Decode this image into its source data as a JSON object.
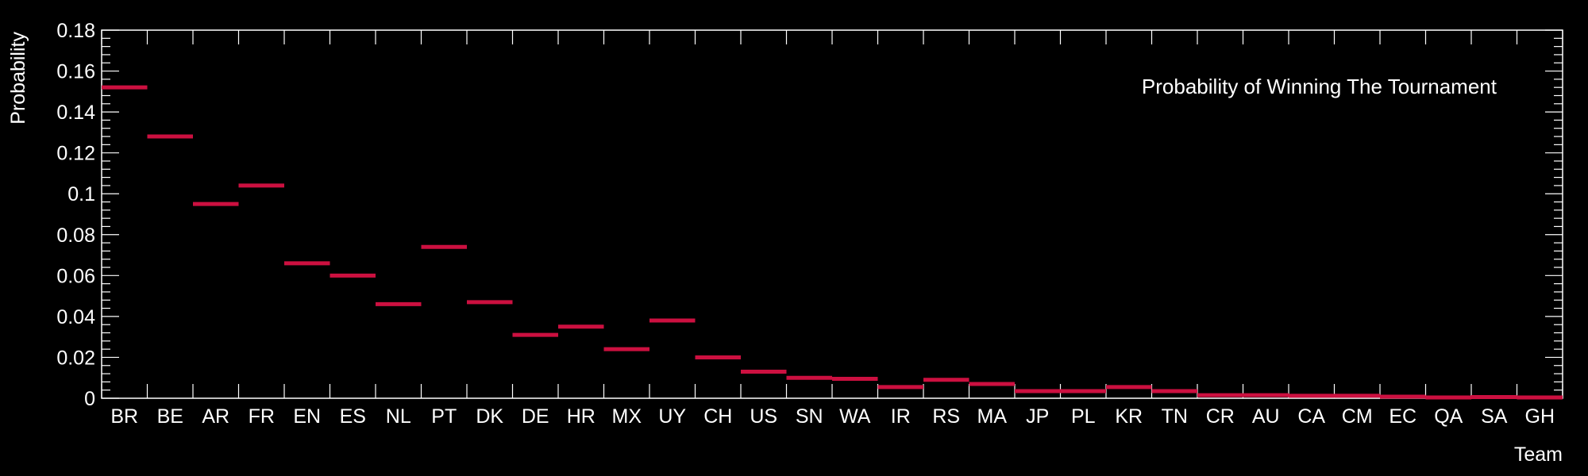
{
  "colors": {
    "background": "#000000",
    "axis": "#ffffff",
    "bar": "#cc1040"
  },
  "chart_data": {
    "type": "bar",
    "style": "horizontal-step-markers",
    "title": "Probability of Winning The Tournament",
    "legend_position": "top-right",
    "xlabel": "Team",
    "ylabel": "Probability",
    "ylim": [
      0,
      0.18
    ],
    "yticks": [
      {
        "value": 0,
        "label": "0"
      },
      {
        "value": 0.02,
        "label": "0.02"
      },
      {
        "value": 0.04,
        "label": "0.04"
      },
      {
        "value": 0.06,
        "label": "0.06"
      },
      {
        "value": 0.08,
        "label": "0.08"
      },
      {
        "value": 0.1,
        "label": "0.1"
      },
      {
        "value": 0.12,
        "label": "0.12"
      },
      {
        "value": 0.14,
        "label": "0.14"
      },
      {
        "value": 0.16,
        "label": "0.16"
      },
      {
        "value": 0.18,
        "label": "0.18"
      }
    ],
    "grid": false,
    "categories": [
      "BR",
      "BE",
      "AR",
      "FR",
      "EN",
      "ES",
      "NL",
      "PT",
      "DK",
      "DE",
      "HR",
      "MX",
      "UY",
      "CH",
      "US",
      "SN",
      "WA",
      "IR",
      "RS",
      "MA",
      "JP",
      "PL",
      "KR",
      "TN",
      "CR",
      "AU",
      "CA",
      "CM",
      "EC",
      "QA",
      "SA",
      "GH"
    ],
    "values": [
      0.152,
      0.128,
      0.095,
      0.104,
      0.066,
      0.06,
      0.046,
      0.074,
      0.047,
      0.031,
      0.035,
      0.024,
      0.038,
      0.02,
      0.013,
      0.01,
      0.0095,
      0.0055,
      0.009,
      0.007,
      0.0035,
      0.0035,
      0.0055,
      0.0035,
      0.0015,
      0.0015,
      0.0012,
      0.0012,
      0.0008,
      0.0004,
      0.0006,
      0.0004
    ]
  }
}
